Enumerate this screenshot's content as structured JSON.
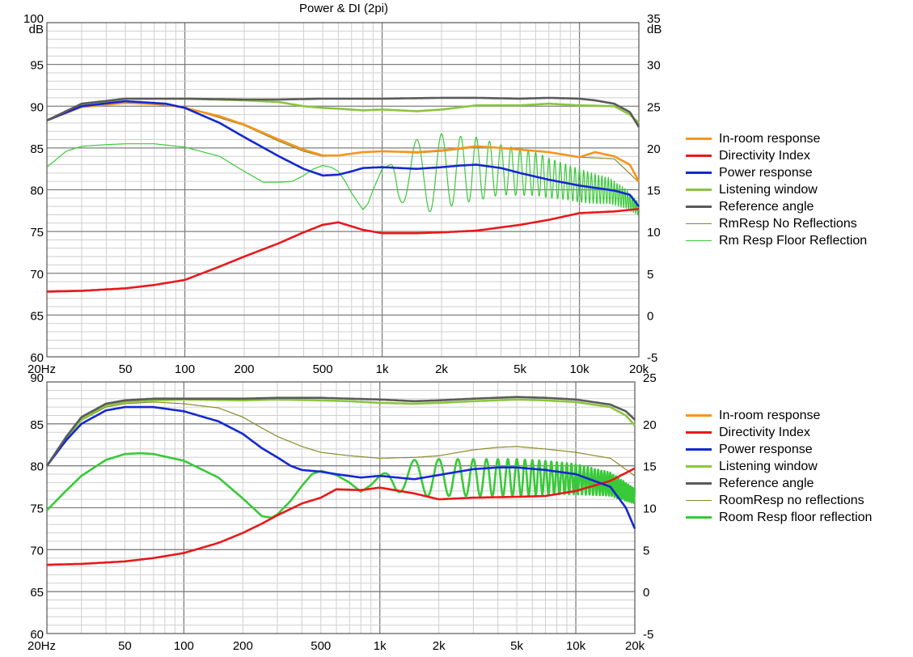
{
  "title": "Power & DI (2pi)",
  "colors": {
    "in_room": "#f7941d",
    "di": "#e8191b",
    "power": "#1428d2",
    "listening": "#8bc53f",
    "reference": "#5a5a5a",
    "no_refl": "#8b8a2a",
    "floor_refl": "#39c939",
    "grid_major": "#7f7f7f",
    "grid_minor": "#cfcfcf"
  },
  "chart_data": [
    {
      "type": "line",
      "x_scale": "log",
      "xlim": [
        20,
        20000
      ],
      "x_ticks": [
        {
          "value": 20,
          "label": "20Hz"
        },
        {
          "value": 50,
          "label": "50"
        },
        {
          "value": 100,
          "label": "100"
        },
        {
          "value": 200,
          "label": "200"
        },
        {
          "value": 500,
          "label": "500"
        },
        {
          "value": 1000,
          "label": "1k"
        },
        {
          "value": 2000,
          "label": "2k"
        },
        {
          "value": 5000,
          "label": "5k"
        },
        {
          "value": 10000,
          "label": "10k"
        },
        {
          "value": 20000,
          "label": "20k"
        }
      ],
      "ylim": [
        60,
        100
      ],
      "y_ticks": [
        "60",
        "65",
        "70",
        "75",
        "80",
        "85",
        "90",
        "95",
        "100"
      ],
      "y_unit": "dB",
      "y2lim": [
        -5,
        35
      ],
      "y2_ticks": [
        "-5",
        "0",
        "5",
        "10",
        "15",
        "20",
        "25",
        "30",
        "35"
      ],
      "y2_unit": "dB",
      "grid": true,
      "legend_position": "right",
      "series": [
        {
          "name": "In-room response",
          "color_key": "in_room",
          "width": 2.6,
          "x": [
            20,
            30,
            50,
            80,
            100,
            150,
            200,
            300,
            400,
            500,
            600,
            800,
            1000,
            1500,
            2000,
            3000,
            4000,
            5000,
            7000,
            10000,
            12000,
            15000,
            18000,
            20000
          ],
          "y": [
            88.3,
            89.9,
            90.4,
            90.2,
            89.8,
            88.8,
            87.8,
            86.0,
            84.8,
            84.1,
            84.1,
            84.5,
            84.6,
            84.5,
            84.7,
            85.2,
            85.0,
            84.8,
            84.5,
            83.9,
            84.5,
            84.0,
            83.0,
            81.0
          ]
        },
        {
          "name": "Directivity Index",
          "color_key": "di",
          "axis": "right",
          "width": 2.6,
          "x": [
            20,
            30,
            50,
            70,
            100,
            150,
            200,
            300,
            400,
            500,
            600,
            800,
            1000,
            1500,
            2000,
            3000,
            5000,
            7000,
            10000,
            15000,
            20000
          ],
          "y": [
            2.8,
            2.9,
            3.2,
            3.6,
            4.2,
            5.8,
            7.0,
            8.6,
            9.9,
            10.8,
            11.1,
            10.2,
            9.8,
            9.8,
            9.9,
            10.1,
            10.8,
            11.4,
            12.2,
            12.4,
            12.7
          ]
        },
        {
          "name": "Power response",
          "color_key": "power",
          "width": 2.6,
          "x": [
            20,
            30,
            50,
            80,
            100,
            150,
            200,
            300,
            400,
            500,
            600,
            700,
            800,
            1000,
            1500,
            2000,
            2500,
            3000,
            4000,
            5000,
            7000,
            10000,
            15000,
            18000,
            20000
          ],
          "y": [
            88.3,
            90.0,
            90.6,
            90.3,
            89.8,
            88.0,
            86.3,
            84.0,
            82.5,
            81.7,
            81.8,
            82.2,
            82.6,
            82.7,
            82.5,
            82.7,
            82.9,
            83.0,
            82.6,
            82.0,
            81.2,
            80.5,
            79.9,
            79.4,
            78.0
          ]
        },
        {
          "name": "Listening window",
          "color_key": "listening",
          "width": 2.6,
          "x": [
            20,
            30,
            50,
            100,
            200,
            300,
            400,
            500,
            600,
            800,
            1000,
            1500,
            2000,
            3000,
            5000,
            7000,
            10000,
            15000,
            18000,
            20000
          ],
          "y": [
            88.3,
            90.1,
            90.9,
            90.9,
            90.7,
            90.5,
            90.0,
            89.8,
            89.7,
            89.5,
            89.6,
            89.4,
            89.6,
            90.1,
            90.1,
            90.3,
            90.1,
            90.0,
            89.0,
            88.0
          ]
        },
        {
          "name": "Reference angle",
          "color_key": "reference",
          "width": 2.6,
          "x": [
            20,
            30,
            50,
            100,
            200,
            300,
            500,
            700,
            1000,
            2000,
            3000,
            5000,
            7000,
            10000,
            12000,
            15000,
            18000,
            20000
          ],
          "y": [
            88.3,
            90.3,
            90.9,
            90.9,
            90.8,
            90.8,
            90.9,
            90.9,
            90.9,
            91.0,
            91.0,
            90.9,
            91.0,
            90.9,
            90.7,
            90.3,
            89.3,
            87.5
          ]
        },
        {
          "name": "RmResp No Reflections",
          "color_key": "no_refl",
          "width": 1.2,
          "x": [
            20,
            30,
            50,
            100,
            200,
            300,
            400,
            500,
            600,
            800,
            1000,
            1500,
            2000,
            3000,
            4000,
            5000,
            7000,
            10000,
            15000,
            20000
          ],
          "y": [
            88.3,
            90.0,
            90.5,
            89.9,
            87.7,
            85.8,
            84.6,
            84.0,
            84.1,
            84.5,
            84.6,
            84.4,
            84.6,
            85.1,
            85.0,
            84.8,
            84.5,
            83.9,
            83.7,
            80.9
          ]
        },
        {
          "name": "Rm Resp Floor Reflection",
          "color_key": "floor_refl",
          "width": 1.2,
          "ripple": true,
          "x": [
            20,
            25,
            30,
            40,
            50,
            70,
            100,
            150,
            200,
            250,
            300,
            350,
            400,
            450,
            500,
            550,
            600,
            650,
            700,
            800,
            850,
            900,
            1000,
            1100,
            1200,
            1400,
            1600,
            1800,
            2000,
            2500,
            3000,
            4000,
            5000,
            6000,
            7000,
            8000,
            10000,
            12000,
            14000,
            17000,
            20000
          ],
          "y": [
            82.7,
            84.6,
            85.2,
            85.4,
            85.5,
            85.5,
            85.1,
            84.0,
            82.2,
            80.9,
            80.9,
            81.0,
            81.7,
            82.5,
            82.9,
            82.7,
            82.2,
            81.0,
            79.6,
            77.6,
            78.4,
            80.0,
            82.5,
            83.0,
            82.6,
            81.5,
            81.5,
            82.0,
            82.2,
            82.4,
            82.5,
            82.4,
            82.1,
            81.9,
            81.4,
            81.1,
            80.5,
            80.1,
            79.9,
            79.0,
            77.7
          ],
          "ripple_amplitude": [
            0,
            0,
            0,
            0,
            0,
            0,
            0,
            0,
            0,
            0,
            0,
            0,
            0,
            0,
            0,
            0,
            0,
            0,
            0,
            0,
            0,
            0,
            0,
            0,
            3.5,
            4.5,
            4.5,
            4.5,
            4.5,
            4.0,
            3.8,
            3.0,
            2.8,
            2.6,
            2.4,
            2.2,
            2.0,
            1.8,
            1.6,
            1.2,
            0.8
          ]
        }
      ]
    },
    {
      "type": "line",
      "x_scale": "log",
      "xlim": [
        20,
        20000
      ],
      "x_ticks": [
        {
          "value": 20,
          "label": "20Hz"
        },
        {
          "value": 50,
          "label": "50"
        },
        {
          "value": 100,
          "label": "100"
        },
        {
          "value": 200,
          "label": "200"
        },
        {
          "value": 500,
          "label": "500"
        },
        {
          "value": 1000,
          "label": "1k"
        },
        {
          "value": 2000,
          "label": "2k"
        },
        {
          "value": 5000,
          "label": "5k"
        },
        {
          "value": 10000,
          "label": "10k"
        },
        {
          "value": 20000,
          "label": "20k"
        }
      ],
      "ylim": [
        60,
        90
      ],
      "y_ticks": [
        "60",
        "65",
        "70",
        "75",
        "80",
        "85",
        "90"
      ],
      "y2lim": [
        -5,
        25
      ],
      "y2_ticks": [
        "-5",
        "0",
        "5",
        "10",
        "15",
        "20",
        "25"
      ],
      "grid": true,
      "legend_position": "right",
      "series": [
        {
          "name": "In-room response",
          "color_key": "in_room",
          "width": 2.6,
          "x": [
            20,
            20000
          ],
          "y": [
            null,
            null
          ]
        },
        {
          "name": "Directivity Index",
          "color_key": "di",
          "axis": "right",
          "width": 2.6,
          "x": [
            20,
            30,
            50,
            70,
            100,
            150,
            200,
            250,
            300,
            400,
            500,
            600,
            800,
            1000,
            1500,
            2000,
            3000,
            5000,
            7000,
            10000,
            15000,
            20000
          ],
          "y": [
            3.2,
            3.3,
            3.6,
            4.0,
            4.6,
            5.8,
            7.0,
            8.1,
            9.1,
            10.5,
            11.2,
            12.2,
            12.1,
            12.4,
            11.7,
            11.0,
            11.2,
            11.3,
            11.4,
            12.0,
            13.2,
            14.7
          ]
        },
        {
          "name": "Power response",
          "color_key": "power",
          "width": 2.6,
          "x": [
            20,
            25,
            30,
            40,
            50,
            70,
            100,
            150,
            200,
            250,
            300,
            350,
            400,
            500,
            600,
            800,
            1000,
            1500,
            2000,
            3000,
            4000,
            5000,
            7000,
            10000,
            15000,
            18000,
            20000
          ],
          "y": [
            80.0,
            83.0,
            85.0,
            86.6,
            87.0,
            87.0,
            86.5,
            85.3,
            83.8,
            82.1,
            81.0,
            80.0,
            79.5,
            79.3,
            79.0,
            78.6,
            78.8,
            78.4,
            78.9,
            79.6,
            79.8,
            79.8,
            79.5,
            79.0,
            77.5,
            75.0,
            72.5
          ]
        },
        {
          "name": "Listening window",
          "color_key": "listening",
          "width": 2.6,
          "x": [
            20,
            25,
            30,
            40,
            50,
            70,
            100,
            200,
            300,
            500,
            700,
            1000,
            1500,
            2000,
            3000,
            5000,
            7000,
            10000,
            15000,
            18000,
            20000
          ],
          "y": [
            80.0,
            83.2,
            85.5,
            87.2,
            87.6,
            87.8,
            87.9,
            87.8,
            87.9,
            87.8,
            87.7,
            87.5,
            87.4,
            87.5,
            87.7,
            87.9,
            87.8,
            87.6,
            87.0,
            86.0,
            84.8
          ]
        },
        {
          "name": "Reference angle",
          "color_key": "reference",
          "width": 2.6,
          "x": [
            20,
            25,
            30,
            40,
            50,
            70,
            100,
            200,
            300,
            500,
            700,
            1000,
            1500,
            2000,
            3000,
            5000,
            7000,
            10000,
            15000,
            18000,
            20000
          ],
          "y": [
            80.0,
            83.4,
            85.8,
            87.4,
            87.8,
            88.0,
            88.0,
            88.0,
            88.1,
            88.1,
            88.0,
            87.9,
            87.7,
            87.8,
            88.0,
            88.2,
            88.1,
            87.9,
            87.3,
            86.5,
            85.5
          ]
        },
        {
          "name": "RoomResp no reflections",
          "color_key": "no_refl",
          "width": 1.2,
          "x": [
            20,
            25,
            30,
            40,
            50,
            70,
            100,
            150,
            200,
            250,
            300,
            400,
            500,
            700,
            1000,
            1500,
            2000,
            3000,
            4000,
            5000,
            7000,
            10000,
            15000,
            20000
          ],
          "y": [
            80.0,
            83.2,
            85.4,
            87.0,
            87.4,
            87.6,
            87.4,
            86.9,
            85.8,
            84.5,
            83.5,
            82.3,
            81.6,
            81.2,
            80.9,
            81.0,
            81.2,
            81.9,
            82.2,
            82.3,
            82.0,
            81.6,
            80.9,
            78.8
          ]
        },
        {
          "name": "Room Resp floor reflection",
          "color_key": "floor_refl",
          "width": 2.6,
          "ripple": true,
          "x": [
            20,
            25,
            30,
            40,
            50,
            60,
            70,
            100,
            150,
            200,
            250,
            280,
            300,
            350,
            400,
            450,
            500,
            600,
            700,
            800,
            900,
            1000,
            1200,
            1500,
            2000,
            3000,
            5000,
            7000,
            10000,
            15000,
            20000
          ],
          "y": [
            74.7,
            77.0,
            78.8,
            80.7,
            81.4,
            81.5,
            81.4,
            80.6,
            78.6,
            76.1,
            74.0,
            73.8,
            74.2,
            75.8,
            77.6,
            79.0,
            79.4,
            78.9,
            78.0,
            76.9,
            77.7,
            78.8,
            78.6,
            78.5,
            78.6,
            78.6,
            78.6,
            78.6,
            78.4,
            77.8,
            76.4
          ],
          "ripple_amplitude": [
            0,
            0,
            0,
            0,
            0,
            0,
            0,
            0,
            0,
            0,
            0,
            0,
            0,
            0,
            0,
            0,
            0,
            0,
            0,
            0,
            0,
            0,
            1.6,
            2.2,
            2.2,
            2.2,
            2.2,
            2.0,
            1.8,
            1.4,
            0.9
          ]
        }
      ]
    }
  ]
}
